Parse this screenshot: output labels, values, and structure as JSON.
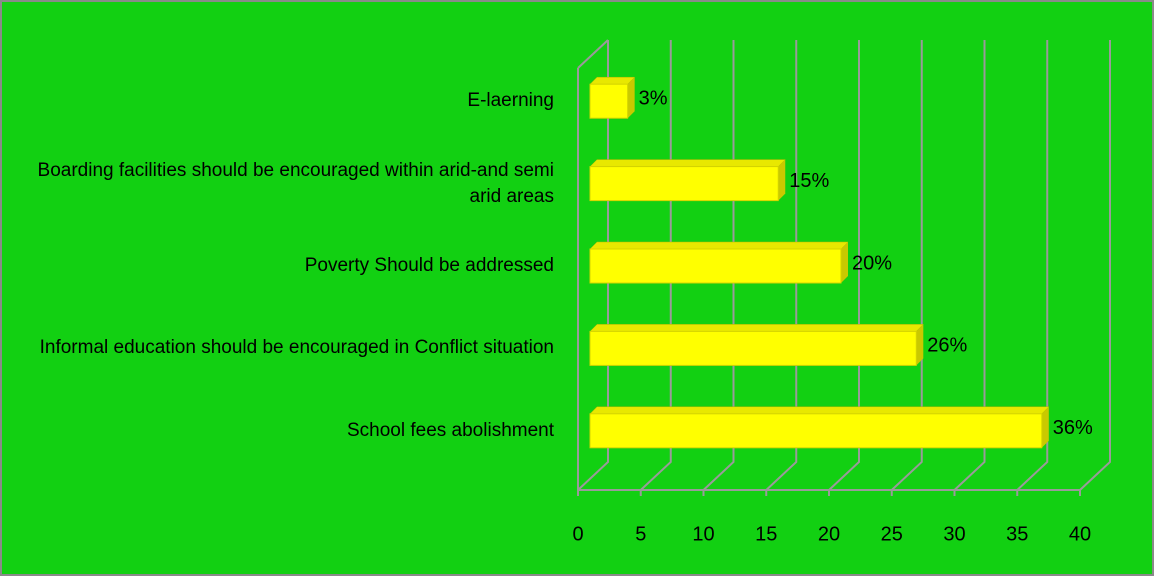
{
  "chart_data": {
    "type": "bar",
    "orientation": "horizontal",
    "categories": [
      "School fees abolishment",
      "Informal education should be encouraged in Conflict situation",
      "Poverty Should be addressed",
      "Boarding facilities should be encouraged within arid-and semi arid areas",
      "E-laerning"
    ],
    "values": [
      36,
      26,
      20,
      15,
      3
    ],
    "value_labels": [
      "36%",
      "26%",
      "20%",
      "15%",
      "3%"
    ],
    "color": "#ffff00",
    "xlim": [
      0,
      40
    ],
    "xticks": [
      0,
      5,
      10,
      15,
      20,
      25,
      30,
      35,
      40
    ],
    "grid": true
  }
}
